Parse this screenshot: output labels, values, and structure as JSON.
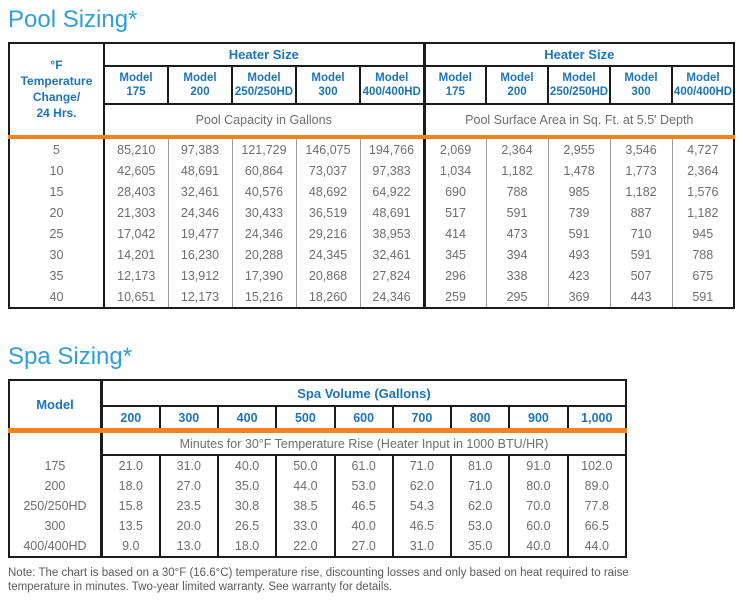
{
  "colors": {
    "title_blue": "#2f9fd8",
    "header_blue": "#1c75bc",
    "accent_orange": "#f58220",
    "body_gray": "#6d6e71",
    "border_black": "#1b1b1b"
  },
  "pool": {
    "title": "Pool Sizing*",
    "corner": {
      "l1": "°F",
      "l2": "Temperature",
      "l3": "Change/",
      "l4": "24 Hrs."
    },
    "group_header": "Heater Size",
    "model_label": "Model",
    "model_ids": [
      "175",
      "200",
      "250/250HD",
      "300",
      "400/400HD"
    ],
    "left_subheader": "Pool Capacity in Gallons",
    "right_subheader": "Pool Surface Area in Sq. Ft. at 5.5' Depth",
    "rows": [
      [
        "5",
        "85,210",
        "97,383",
        "121,729",
        "146,075",
        "194,766",
        "2,069",
        "2,364",
        "2,955",
        "3,546",
        "4,727"
      ],
      [
        "10",
        "42,605",
        "48,691",
        "60,864",
        "73,037",
        "97,383",
        "1,034",
        "1,182",
        "1,478",
        "1,773",
        "2,364"
      ],
      [
        "15",
        "28,403",
        "32,461",
        "40,576",
        "48,692",
        "64,922",
        "690",
        "788",
        "985",
        "1,182",
        "1,576"
      ],
      [
        "20",
        "21,303",
        "24,346",
        "30,433",
        "36,519",
        "48,691",
        "517",
        "591",
        "739",
        "887",
        "1,182"
      ],
      [
        "25",
        "17,042",
        "19,477",
        "24,346",
        "29,216",
        "38,953",
        "414",
        "473",
        "591",
        "710",
        "945"
      ],
      [
        "30",
        "14,201",
        "16,230",
        "20,288",
        "24,345",
        "32,461",
        "345",
        "394",
        "493",
        "591",
        "788"
      ],
      [
        "35",
        "12,173",
        "13,912",
        "17,390",
        "20,868",
        "27,824",
        "296",
        "338",
        "423",
        "507",
        "675"
      ],
      [
        "40",
        "10,651",
        "12,173",
        "15,216",
        "18,260",
        "24,346",
        "259",
        "295",
        "369",
        "443",
        "591"
      ]
    ]
  },
  "spa": {
    "title": "Spa Sizing*",
    "model_header": "Model",
    "group_header": "Spa Volume (Gallons)",
    "volumes": [
      "200",
      "300",
      "400",
      "500",
      "600",
      "700",
      "800",
      "900",
      "1,000"
    ],
    "subheader": "Minutes for 30°F Temperature Rise (Heater Input in 1000 BTU/HR)",
    "rows": [
      [
        "175",
        "21.0",
        "31.0",
        "40.0",
        "50.0",
        "61.0",
        "71.0",
        "81.0",
        "91.0",
        "102.0"
      ],
      [
        "200",
        "18.0",
        "27.0",
        "35.0",
        "44.0",
        "53.0",
        "62.0",
        "71.0",
        "80.0",
        "89.0"
      ],
      [
        "250/250HD",
        "15.8",
        "23.5",
        "30.8",
        "38.5",
        "46.5",
        "54.3",
        "62.0",
        "70.0",
        "77.8"
      ],
      [
        "300",
        "13.5",
        "20.0",
        "26.5",
        "33.0",
        "40.0",
        "46.5",
        "53.0",
        "60.0",
        "66.5"
      ],
      [
        "400/400HD",
        "9.0",
        "13.0",
        "18.0",
        "22.0",
        "27.0",
        "31.0",
        "35.0",
        "40.0",
        "44.0"
      ]
    ]
  },
  "note": "Note: The chart is based on a 30°F (16.6°C) temperature rise, discounting losses and only based on heat required to raise temperature in minutes. Two-year limited warranty. See warranty for details."
}
